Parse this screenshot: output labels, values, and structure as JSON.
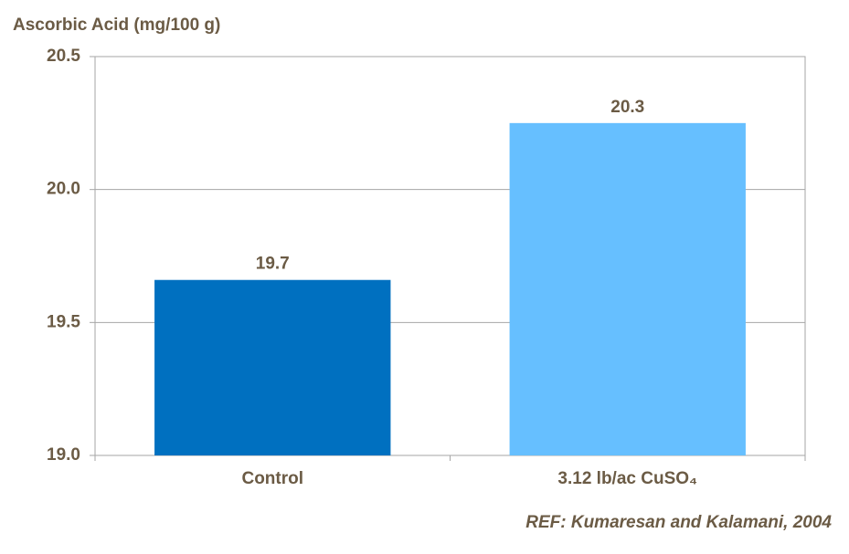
{
  "chart_data": {
    "type": "bar",
    "title": "Ascorbic Acid (mg/100 g)",
    "annotation": "REF: Kumaresan and Kalamani, 2004",
    "categories": [
      "Control",
      "3.12 lb/ac CuSO₄"
    ],
    "values": [
      19.66,
      20.25
    ],
    "value_labels": [
      "19.7",
      "20.3"
    ],
    "colors": [
      "#0070c0",
      "#66bfff"
    ],
    "ylim": [
      19,
      20.5
    ],
    "yticks": [
      {
        "value": 19,
        "label": "19.0"
      },
      19.5,
      {
        "value": 20,
        "label": "20.0"
      },
      20.5
    ],
    "grid": true
  }
}
